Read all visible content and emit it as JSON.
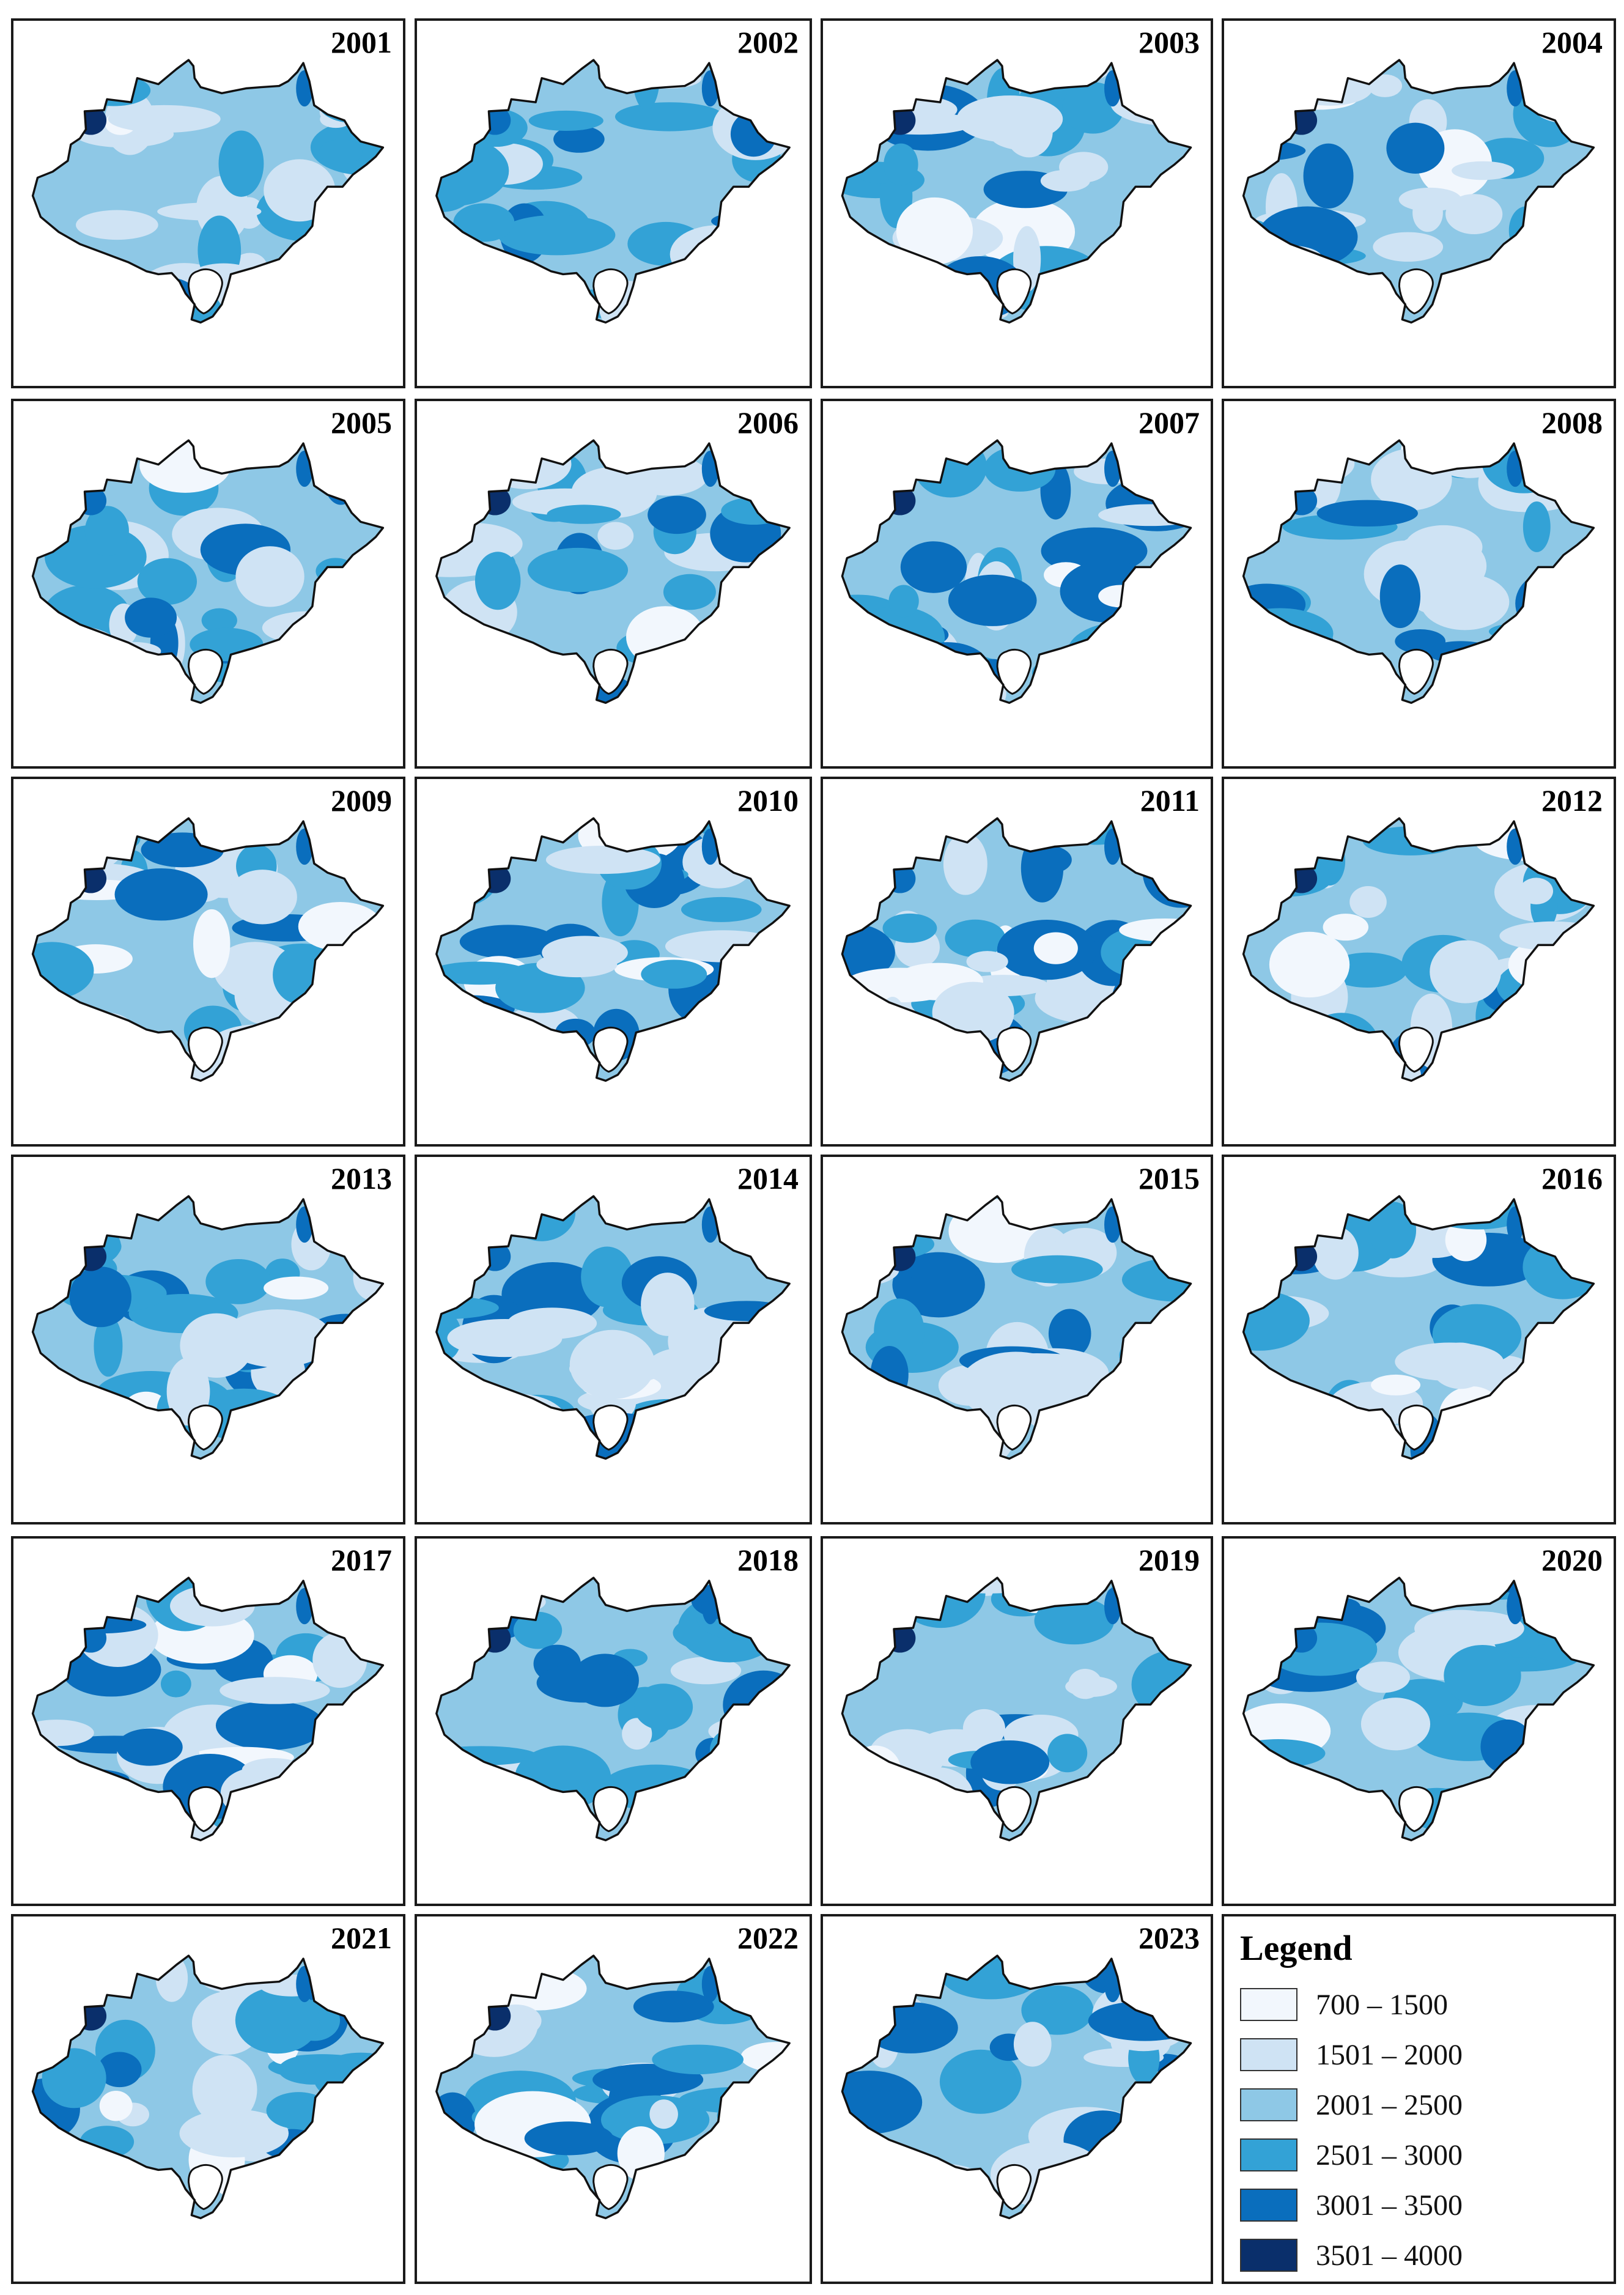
{
  "years": [
    "2001",
    "2002",
    "2003",
    "2004",
    "2005",
    "2006",
    "2007",
    "2008",
    "2009",
    "2010",
    "2011",
    "2012",
    "2013",
    "2014",
    "2015",
    "2016",
    "2017",
    "2018",
    "2019",
    "2020",
    "2021",
    "2022",
    "2023"
  ],
  "legend": {
    "title": "Legend",
    "classes": [
      {
        "label": "700 – 1500",
        "color": "#f2f7fd"
      },
      {
        "label": "1501 – 2000",
        "color": "#cfe3f4"
      },
      {
        "label": "2001 – 2500",
        "color": "#8ec8e6"
      },
      {
        "label": "2501 – 3000",
        "color": "#33a2d6"
      },
      {
        "label": "3001 – 3500",
        "color": "#0a6ebd"
      },
      {
        "label": "3501 – 4000",
        "color": "#0a2f6b"
      }
    ]
  }
}
